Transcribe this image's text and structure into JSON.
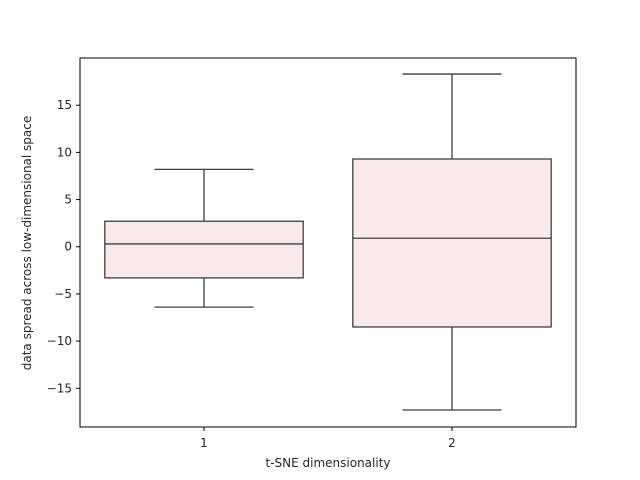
{
  "chart_data": {
    "type": "box",
    "title": "",
    "xlabel": "t-SNE dimensionality",
    "ylabel": "data spread across low-dimensional space",
    "categories": [
      "1",
      "2"
    ],
    "boxes": [
      {
        "category": "1",
        "whisker_low": -6.4,
        "q1": -3.3,
        "median": 0.3,
        "q3": 2.7,
        "whisker_high": 8.2
      },
      {
        "category": "2",
        "whisker_low": -17.3,
        "q1": -8.5,
        "median": 0.9,
        "q3": 9.3,
        "whisker_high": 18.3
      }
    ],
    "ylim": [
      -19.1,
      20.0
    ],
    "yticks": [
      -15,
      -10,
      -5,
      0,
      5,
      10,
      15
    ],
    "grid": false,
    "colors": {
      "box_fill": "#f9e8ec",
      "line": "#3f3f3f",
      "axes": "#000000"
    }
  }
}
